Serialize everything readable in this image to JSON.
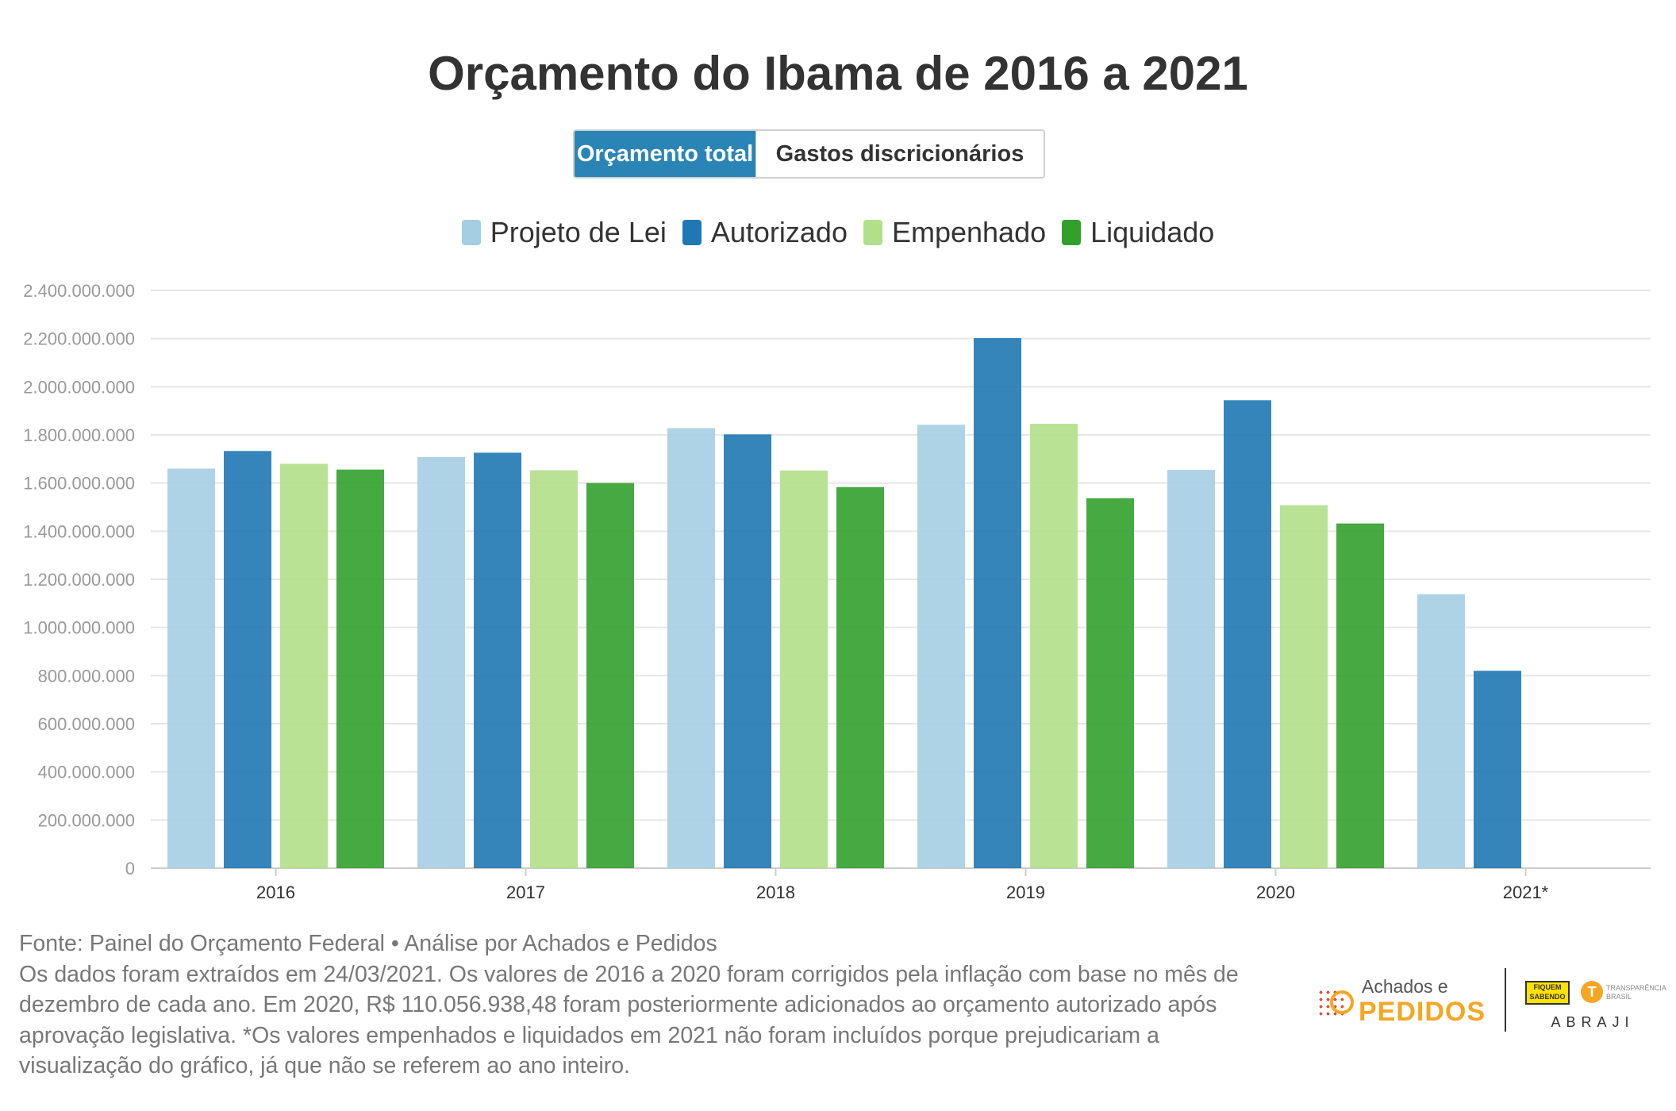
{
  "title": "Orçamento do Ibama de 2016 a 2021",
  "toggle": {
    "active_label": "Orçamento total",
    "inactive_label": "Gastos discricionários"
  },
  "colors": {
    "projeto": "#a6cee3",
    "autorizado": "#1f78b4",
    "empenhado": "#b2df8a",
    "liquidado": "#33a02c",
    "accent": "#2a85b6"
  },
  "chart_data": {
    "type": "bar",
    "categories": [
      "2016",
      "2017",
      "2018",
      "2019",
      "2020",
      "2021*"
    ],
    "series": [
      {
        "name": "Projeto de Lei",
        "color": "#a6cee3",
        "values": [
          1660000000,
          1708000000,
          1828000000,
          1842000000,
          1655000000,
          1138000000
        ]
      },
      {
        "name": "Autorizado",
        "color": "#1f78b4",
        "values": [
          1733000000,
          1726000000,
          1802000000,
          2202000000,
          1944000000,
          820000000
        ]
      },
      {
        "name": "Empenhado",
        "color": "#b2df8a",
        "values": [
          1680000000,
          1653000000,
          1652000000,
          1846000000,
          1508000000,
          null
        ]
      },
      {
        "name": "Liquidado",
        "color": "#33a02c",
        "values": [
          1656000000,
          1600000000,
          1583000000,
          1537000000,
          1432000000,
          null
        ]
      }
    ],
    "yticks": [
      "0",
      "200.000.000",
      "400.000.000",
      "600.000.000",
      "800.000.000",
      "1.000.000.000",
      "1.200.000.000",
      "1.400.000.000",
      "1.600.000.000",
      "1.800.000.000",
      "2.000.000.000",
      "2.200.000.000",
      "2.400.000.000"
    ],
    "ylim": [
      0,
      2400000000
    ],
    "grid": true,
    "legend_position": "top-center"
  },
  "footer": {
    "source": "Fonte: Painel do Orçamento Federal • Análise por Achados e Pedidos",
    "note": "Os dados foram extraídos em 24/03/2021. Os valores de 2016 a 2020 foram corrigidos pela inflação com base no mês de dezembro de cada ano. Em 2020, R$ 110.056.938,48 foram posteriormente adicionados ao orçamento autorizado após aprovação legislativa. *Os valores empenhados e liquidados em 2021 não foram incluídos porque prejudicariam a visualização do gráfico, já que não se referem ao ano inteiro."
  },
  "logos": {
    "achados_small": "Achados e",
    "achados_big": "PEDIDOS",
    "fiquem": "FIQUEM SABENDO",
    "transparencia_mark": "T",
    "transparencia": "TRANSPARÊNCIA BRASIL",
    "abraji": "ABRAJI"
  }
}
